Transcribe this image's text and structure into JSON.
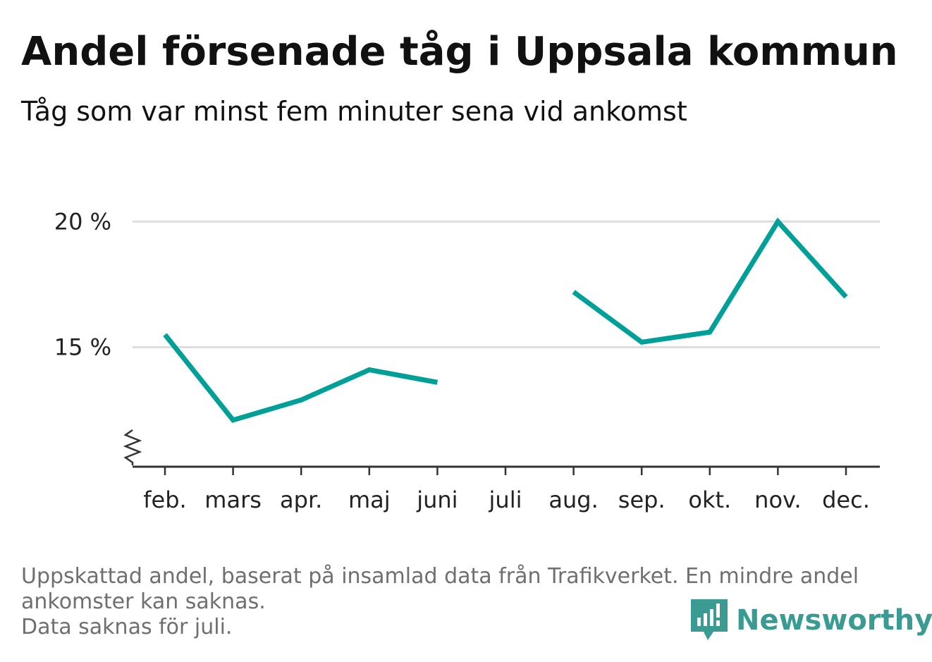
{
  "header": {
    "title": "Andel försenade tåg i Uppsala kommun",
    "subtitle": "Tåg som var minst fem minuter sena vid ankomst"
  },
  "footer": {
    "line1": "Uppskattad andel, baserat på insamlad data från Trafikverket. En mindre andel",
    "line2": "ankomster kan saknas.",
    "line3": "Data saknas för juli."
  },
  "logo": {
    "name": "Newsworthy",
    "icon": "bar-chart-speech-bubble-icon",
    "color": "#3a9b93"
  },
  "colors": {
    "line": "#00a098",
    "grid": "#dddddd",
    "axis": "#333333",
    "text": "#222222",
    "footer": "#6f6f6f"
  },
  "chart_data": {
    "type": "line",
    "title": "Andel försenade tåg i Uppsala kommun",
    "subtitle": "Tåg som var minst fem minuter sena vid ankomst",
    "xlabel": "",
    "ylabel": "",
    "categories": [
      "feb.",
      "mars",
      "apr.",
      "maj",
      "juni",
      "juli",
      "aug.",
      "sep.",
      "okt.",
      "nov.",
      "dec."
    ],
    "series": [
      {
        "values": [
          15.5,
          12.1,
          12.9,
          14.1,
          13.6,
          null,
          17.2,
          15.2,
          15.6,
          20.0,
          17.0
        ]
      }
    ],
    "yticks": [
      15,
      20
    ],
    "ytick_labels": [
      "15 %",
      "20 %"
    ],
    "ylim": [
      10.3,
      20.4
    ],
    "y_axis_break": true,
    "grid": true,
    "legend": "none"
  }
}
